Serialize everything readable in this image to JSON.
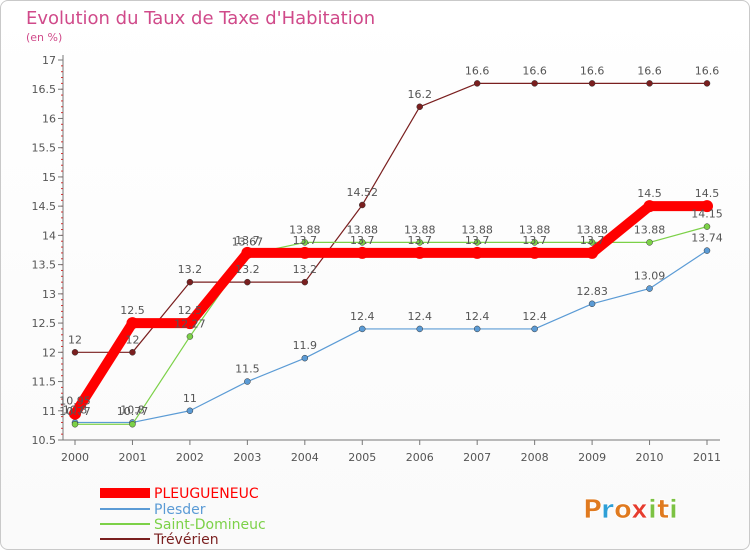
{
  "chart_data": {
    "type": "line",
    "title": "Evolution du Taux de Taxe d'Habitation",
    "subtitle": "(en %)",
    "x": [
      2000,
      2001,
      2002,
      2003,
      2004,
      2005,
      2006,
      2007,
      2008,
      2009,
      2010,
      2011
    ],
    "ylim": [
      10.5,
      17
    ],
    "yticks": [
      10.5,
      11,
      11.5,
      12,
      12.5,
      13,
      13.5,
      14,
      14.5,
      15,
      15.5,
      16,
      16.5,
      17
    ],
    "grid": false,
    "legend_position": "bottom-left",
    "series": [
      {
        "name": "PLEUGUENEUC",
        "color": "#ff0000",
        "values": [
          10.95,
          12.5,
          12.5,
          13.7,
          13.7,
          13.7,
          13.7,
          13.7,
          13.7,
          13.7,
          14.5,
          14.5
        ]
      },
      {
        "name": "Plesder",
        "color": "#5b9bd5",
        "values": [
          10.8,
          10.8,
          11,
          11.5,
          11.9,
          12.4,
          12.4,
          12.4,
          12.4,
          12.83,
          13.09,
          13.74
        ]
      },
      {
        "name": "Saint-Domineuc",
        "color": "#7cd148",
        "values": [
          10.77,
          10.77,
          12.27,
          13.67,
          13.88,
          13.88,
          13.88,
          13.88,
          13.88,
          13.88,
          13.88,
          14.15
        ]
      },
      {
        "name": "Trévérien",
        "color": "#7a1f1f",
        "values": [
          12,
          12,
          13.2,
          13.2,
          13.2,
          14.52,
          16.2,
          16.6,
          16.6,
          16.6,
          16.6,
          16.6
        ]
      }
    ]
  },
  "logo": {
    "letters": [
      "P",
      "r",
      "o",
      "x",
      "i",
      "t",
      "i"
    ],
    "colors": [
      "#e07a1f",
      "#2e9fd6",
      "#e07a1f",
      "#e63c2e",
      "#7cc243",
      "#e07a1f",
      "#7cc243"
    ]
  }
}
